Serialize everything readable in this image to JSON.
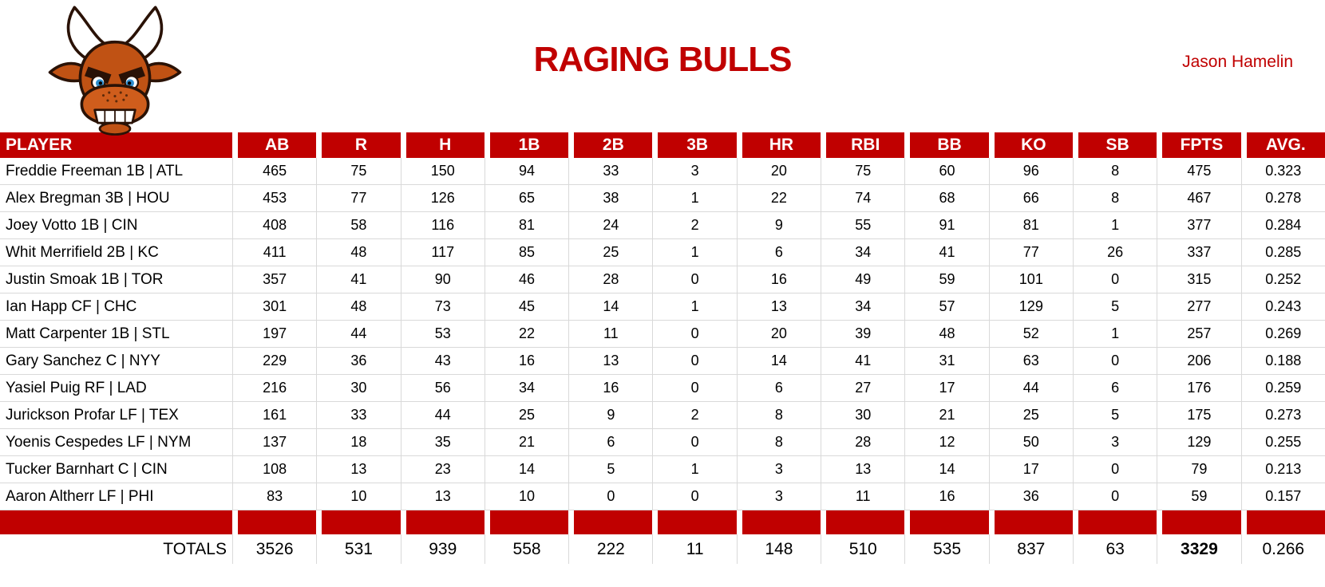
{
  "header": {
    "title": "RAGING BULLS",
    "owner": "Jason Hamelin",
    "logo_icon": "angry-bull-icon"
  },
  "colors": {
    "accent_red": "#c00000",
    "grid_line": "#d9d9d9",
    "header_text": "#ffffff",
    "body_text": "#000000"
  },
  "table": {
    "columns": [
      "PLAYER",
      "AB",
      "R",
      "H",
      "1B",
      "2B",
      "3B",
      "HR",
      "RBI",
      "BB",
      "KO",
      "SB",
      "FPTS",
      "AVG."
    ],
    "rows": [
      {
        "player": "Freddie Freeman 1B | ATL",
        "stats": [
          "465",
          "75",
          "150",
          "94",
          "33",
          "3",
          "20",
          "75",
          "60",
          "96",
          "8",
          "475",
          "0.323"
        ]
      },
      {
        "player": "Alex Bregman 3B | HOU",
        "stats": [
          "453",
          "77",
          "126",
          "65",
          "38",
          "1",
          "22",
          "74",
          "68",
          "66",
          "8",
          "467",
          "0.278"
        ]
      },
      {
        "player": "Joey Votto 1B | CIN",
        "stats": [
          "408",
          "58",
          "116",
          "81",
          "24",
          "2",
          "9",
          "55",
          "91",
          "81",
          "1",
          "377",
          "0.284"
        ]
      },
      {
        "player": "Whit Merrifield 2B | KC",
        "stats": [
          "411",
          "48",
          "117",
          "85",
          "25",
          "1",
          "6",
          "34",
          "41",
          "77",
          "26",
          "337",
          "0.285"
        ]
      },
      {
        "player": "Justin Smoak 1B | TOR",
        "stats": [
          "357",
          "41",
          "90",
          "46",
          "28",
          "0",
          "16",
          "49",
          "59",
          "101",
          "0",
          "315",
          "0.252"
        ]
      },
      {
        "player": "Ian Happ CF | CHC",
        "stats": [
          "301",
          "48",
          "73",
          "45",
          "14",
          "1",
          "13",
          "34",
          "57",
          "129",
          "5",
          "277",
          "0.243"
        ]
      },
      {
        "player": "Matt Carpenter 1B | STL",
        "stats": [
          "197",
          "44",
          "53",
          "22",
          "11",
          "0",
          "20",
          "39",
          "48",
          "52",
          "1",
          "257",
          "0.269"
        ]
      },
      {
        "player": "Gary Sanchez C | NYY",
        "stats": [
          "229",
          "36",
          "43",
          "16",
          "13",
          "0",
          "14",
          "41",
          "31",
          "63",
          "0",
          "206",
          "0.188"
        ]
      },
      {
        "player": "Yasiel Puig RF | LAD",
        "stats": [
          "216",
          "30",
          "56",
          "34",
          "16",
          "0",
          "6",
          "27",
          "17",
          "44",
          "6",
          "176",
          "0.259"
        ]
      },
      {
        "player": "Jurickson Profar LF | TEX",
        "stats": [
          "161",
          "33",
          "44",
          "25",
          "9",
          "2",
          "8",
          "30",
          "21",
          "25",
          "5",
          "175",
          "0.273"
        ]
      },
      {
        "player": "Yoenis Cespedes LF | NYM",
        "stats": [
          "137",
          "18",
          "35",
          "21",
          "6",
          "0",
          "8",
          "28",
          "12",
          "50",
          "3",
          "129",
          "0.255"
        ]
      },
      {
        "player": "Tucker Barnhart C | CIN",
        "stats": [
          "108",
          "13",
          "23",
          "14",
          "5",
          "1",
          "3",
          "13",
          "14",
          "17",
          "0",
          "79",
          "0.213"
        ]
      },
      {
        "player": "Aaron Altherr LF | PHI",
        "stats": [
          "83",
          "10",
          "13",
          "10",
          "0",
          "0",
          "3",
          "11",
          "16",
          "36",
          "0",
          "59",
          "0.157"
        ]
      }
    ],
    "totals_label": "TOTALS",
    "totals": [
      "3526",
      "531",
      "939",
      "558",
      "222",
      "11",
      "148",
      "510",
      "535",
      "837",
      "63",
      "3329",
      "0.266"
    ]
  }
}
